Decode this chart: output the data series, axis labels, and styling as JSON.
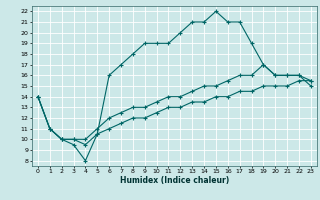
{
  "xlabel": "Humidex (Indice chaleur)",
  "bg_color": "#cce8e8",
  "grid_color": "#aacccc",
  "line_color": "#006666",
  "xlim": [
    -0.5,
    23.5
  ],
  "ylim": [
    7.5,
    22.5
  ],
  "xticks": [
    0,
    1,
    2,
    3,
    4,
    5,
    6,
    7,
    8,
    9,
    10,
    11,
    12,
    13,
    14,
    15,
    16,
    17,
    18,
    19,
    20,
    21,
    22,
    23
  ],
  "yticks": [
    8,
    9,
    10,
    11,
    12,
    13,
    14,
    15,
    16,
    17,
    18,
    19,
    20,
    21,
    22
  ],
  "lines": [
    {
      "x": [
        0,
        1,
        2,
        3,
        4,
        5,
        6,
        7,
        8,
        9,
        10,
        11,
        12,
        13,
        14,
        15,
        16,
        17,
        18,
        19,
        20,
        21,
        22,
        23
      ],
      "y": [
        14,
        11,
        10,
        9.5,
        8,
        10.5,
        16,
        17,
        18,
        19,
        19,
        19,
        20,
        21,
        21,
        22,
        21,
        21,
        19,
        17,
        16,
        16,
        16,
        15
      ]
    },
    {
      "x": [
        0,
        1,
        2,
        3,
        4,
        5,
        6,
        7,
        8,
        9,
        10,
        11,
        12,
        13,
        14,
        15,
        16,
        17,
        18,
        19,
        20,
        21,
        22,
        23
      ],
      "y": [
        14,
        11,
        10,
        10,
        10,
        11,
        12,
        12.5,
        13,
        13,
        13.5,
        14,
        14,
        14.5,
        15,
        15,
        15.5,
        16,
        16,
        17,
        16,
        16,
        16,
        15.5
      ]
    },
    {
      "x": [
        0,
        1,
        2,
        3,
        4,
        5,
        6,
        7,
        8,
        9,
        10,
        11,
        12,
        13,
        14,
        15,
        16,
        17,
        18,
        19,
        20,
        21,
        22,
        23
      ],
      "y": [
        14,
        11,
        10,
        10,
        9.5,
        10.5,
        11,
        11.5,
        12,
        12,
        12.5,
        13,
        13,
        13.5,
        13.5,
        14,
        14,
        14.5,
        14.5,
        15,
        15,
        15,
        15.5,
        15.5
      ]
    }
  ]
}
